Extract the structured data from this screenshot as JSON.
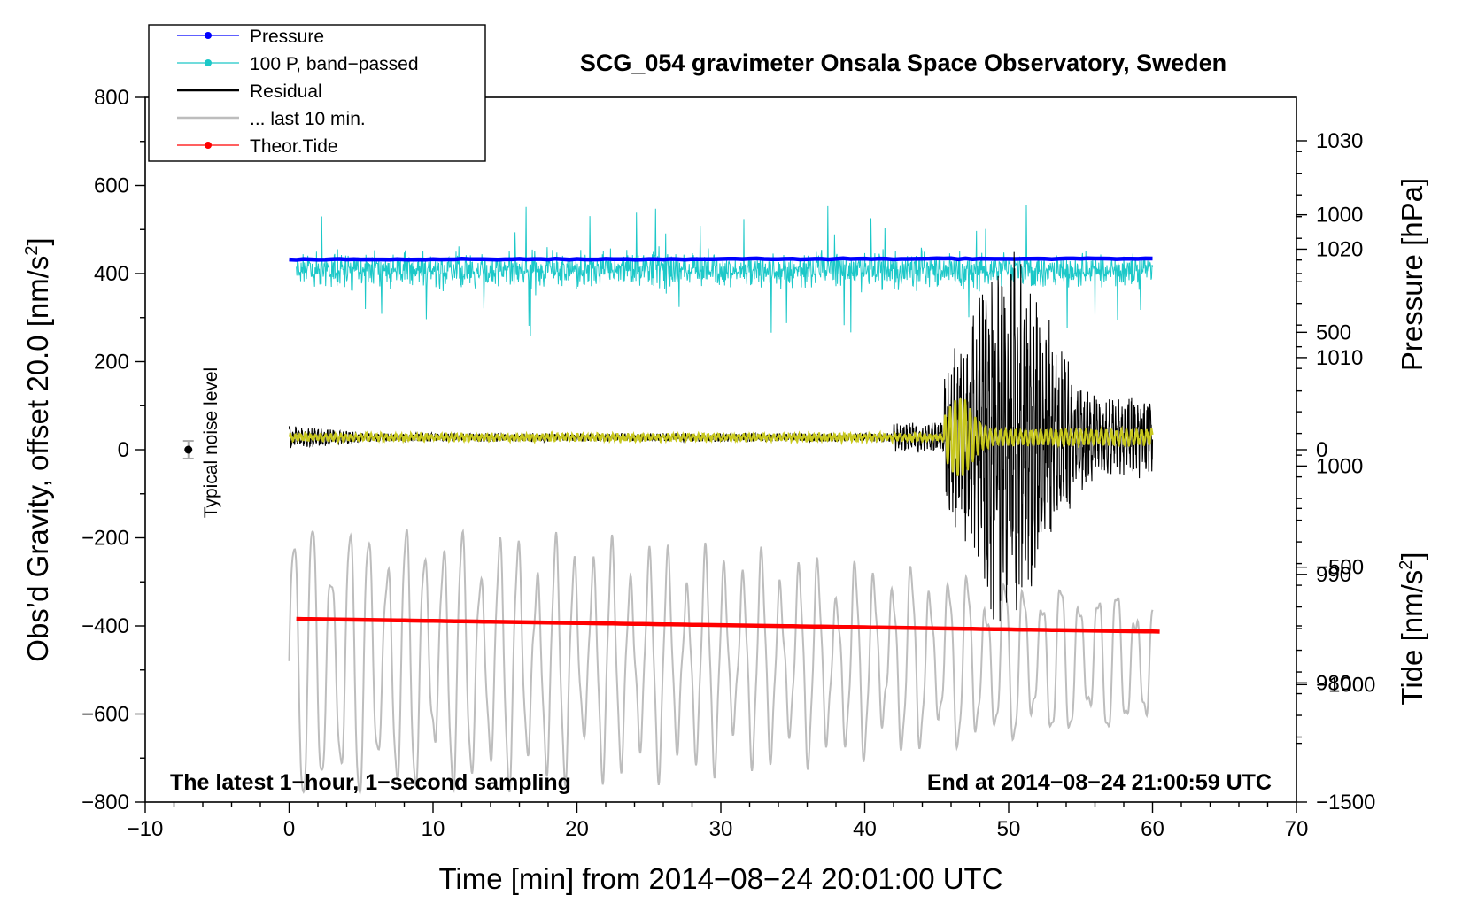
{
  "chart_data": {
    "type": "line",
    "title": "SCG_054 gravimeter Onsala Space Observatory, Sweden",
    "xlabel": "Time [min] from 2014−08−24 20:01:00 UTC",
    "ylabel_left_main": "Obs’d Gravity, offset 20.0 [nm/s",
    "ylabel_left_sup": "2",
    "ylabel_left_end": "]",
    "ylabel_right_pressure": "Pressure [hPa]",
    "ylabel_right_tide_main": "Tide [nm/s",
    "ylabel_right_tide_sup": "2",
    "ylabel_right_tide_end": "]",
    "xlim": [
      -10,
      70
    ],
    "ylim": [
      -800,
      800
    ],
    "pressure_axis_range": [
      969,
      1034
    ],
    "tide_axis_range": [
      -1500,
      1500
    ],
    "x_ticks": [
      -10,
      0,
      10,
      20,
      30,
      40,
      50,
      60,
      70
    ],
    "x_tick_labels": [
      "−10",
      "0",
      "10",
      "20",
      "30",
      "40",
      "50",
      "60",
      "70"
    ],
    "y_ticks": [
      800,
      600,
      400,
      200,
      0,
      -200,
      -400,
      -600,
      -800
    ],
    "y_tick_labels": [
      "800",
      "600",
      "400",
      "200",
      "0",
      "−200",
      "−400",
      "−600",
      "−800"
    ],
    "pressure_ticks": [
      1030,
      1020,
      1010,
      1000,
      990,
      980
    ],
    "pressure_tick_labels": [
      "1030",
      "1020",
      "1010",
      "1000",
      "990",
      "980"
    ],
    "tide_ticks": [
      1000,
      500,
      0,
      -500,
      -1000,
      -1500
    ],
    "tide_tick_labels": [
      "1000",
      "500",
      "0",
      "−500",
      "−1000",
      "−1500"
    ],
    "annotation_left": "The latest 1−hour, 1−second sampling",
    "annotation_right": "End at 2014−08−24 21:00:59 UTC",
    "noise_label": "Typical noise level",
    "noise_marker": {
      "x": -7.0,
      "y": 0,
      "err": 20
    },
    "legend": [
      {
        "label": "Pressure",
        "color": "#0000ff",
        "marker": true
      },
      {
        "label": "100 P, band−passed",
        "color": "#1cc8c8",
        "marker": true
      },
      {
        "label": "Residual",
        "color": "#000000",
        "marker": false
      },
      {
        "label": "... last 10 min.",
        "color": "#bdbdbd",
        "marker": false
      },
      {
        "label": "Theor.Tide",
        "color": "#ff0000",
        "marker": true
      }
    ],
    "colors": {
      "pressure": "#0000ff",
      "bandpassed": "#1cc8c8",
      "residual": "#000000",
      "last10": "#bdbdbd",
      "tide": "#ff0000",
      "smoothed": "#c8c81e"
    },
    "series": [
      {
        "name": "Pressure",
        "x_range": [
          0,
          60
        ],
        "y_start": 432,
        "y_end": 434,
        "axis": "left"
      },
      {
        "name": "100 P, band-passed",
        "x_range": [
          0.5,
          60
        ],
        "center": 408,
        "spread": 50,
        "axis": "left"
      },
      {
        "name": "Residual",
        "x_range": [
          0,
          60
        ],
        "center": 28,
        "quake_onset": 45.5,
        "quake_peak": 50,
        "peak_amplitude": 380,
        "axis": "left"
      },
      {
        "name": "... last 10 min.",
        "x_range": [
          0,
          60
        ],
        "center": -480,
        "amplitude_start": 330,
        "amplitude_end": 160,
        "axis": "left"
      },
      {
        "name": "Theor.Tide",
        "x_range": [
          0.5,
          60.5
        ],
        "y_start": -384,
        "y_end": -413,
        "axis": "left"
      }
    ]
  }
}
